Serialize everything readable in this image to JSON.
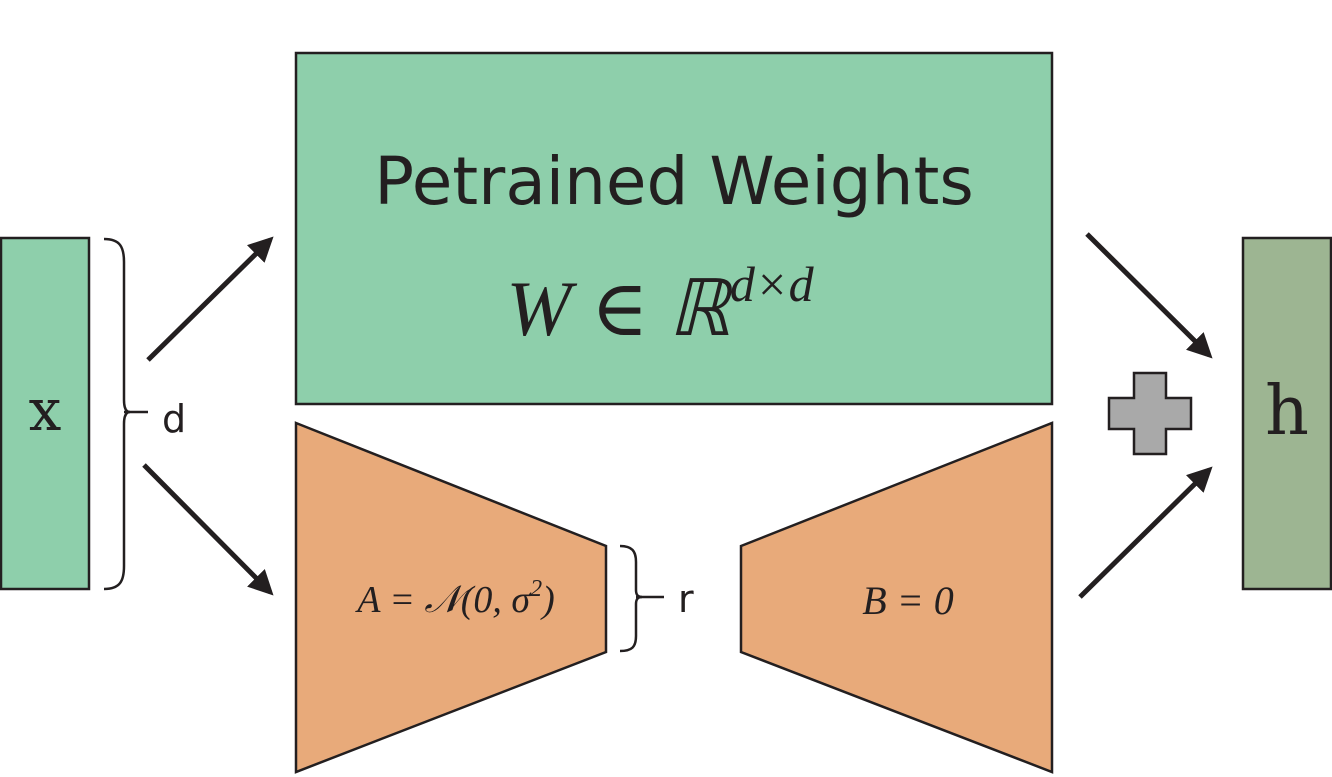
{
  "input": {
    "label": "x",
    "fill": "#8ecfab"
  },
  "input_dim_label": "d",
  "pretrained": {
    "title": "Petrained Weights",
    "formula_base": "W ∈ ℝ",
    "formula_sup": "d×d",
    "fill": "#8ecfab"
  },
  "matrix_a": {
    "formula": "A = 𝒩(0, σ",
    "formula_sup": "2",
    "formula_end": ")",
    "fill": "#e8aa7a"
  },
  "rank_label": "r",
  "matrix_b": {
    "formula": "B = 0",
    "fill": "#e8aa7a"
  },
  "plus_icon": {
    "fill": "#a9a9a9"
  },
  "output": {
    "label": "h",
    "fill": "#9db592"
  }
}
